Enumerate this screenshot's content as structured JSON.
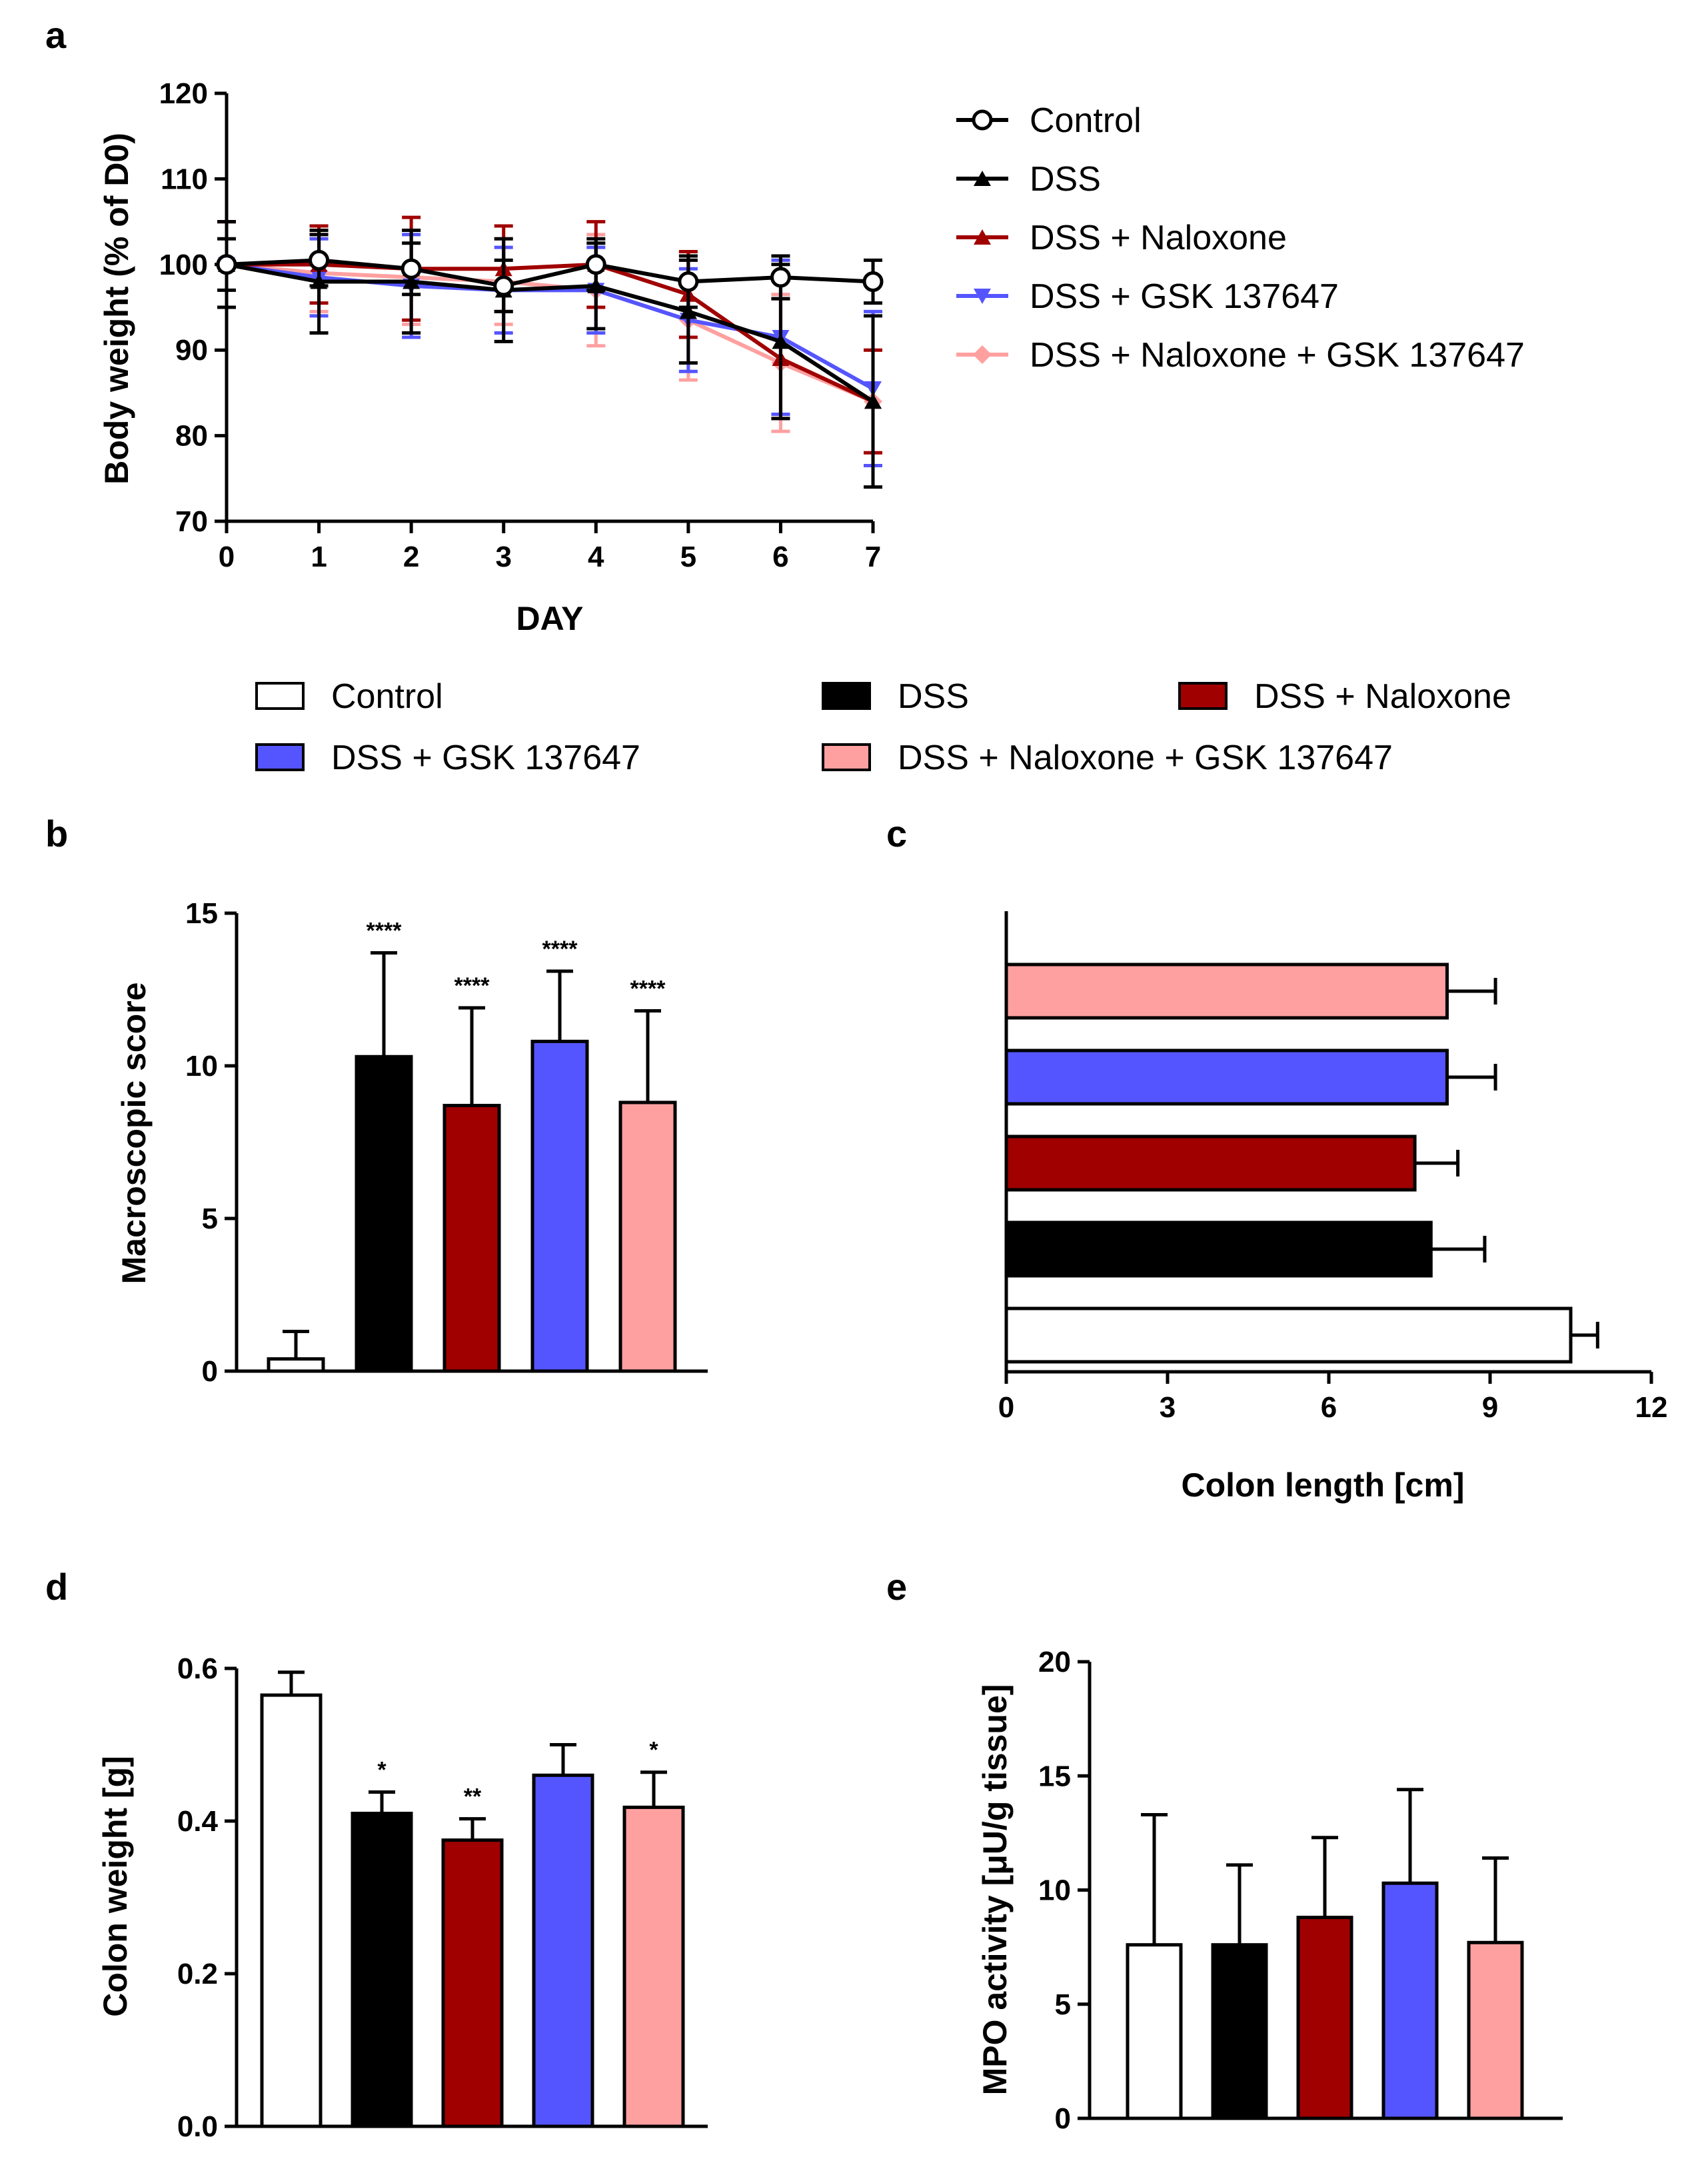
{
  "colors": {
    "Control": "#ffffff",
    "DSS": "#000000",
    "DSS + Naloxone": "#a00000",
    "DSS + GSK 137647": "#5555ff",
    "DSS + Naloxone + GSK 137647": "#ffa0a0"
  },
  "bar_legend": [
    "Control",
    "DSS",
    "DSS + Naloxone",
    "DSS + GSK 137647",
    "DSS + Naloxone + GSK 137647"
  ],
  "chart_data": [
    {
      "id": "a",
      "panel_label": "a",
      "type": "line",
      "xlabel": "DAY",
      "ylabel": "Body weight (% of D0)",
      "x": [
        0,
        1,
        2,
        3,
        4,
        5,
        6,
        7
      ],
      "xticks": [
        "0",
        "1",
        "2",
        "3",
        "4",
        "5",
        "6",
        "7"
      ],
      "ylim": [
        70,
        120
      ],
      "yticks": [
        "70",
        "80",
        "90",
        "100",
        "110",
        "120"
      ],
      "legend": [
        "Control",
        "DSS",
        "DSS + Naloxone",
        "DSS + GSK 137647",
        "DSS + Naloxone + GSK 137647"
      ],
      "series": [
        {
          "name": "Control",
          "values": [
            100,
            100.5,
            99.5,
            97.5,
            100,
            98,
            98.5,
            98
          ],
          "err": [
            3,
            3,
            3,
            3,
            3,
            3,
            2.5,
            2.5
          ]
        },
        {
          "name": "DSS",
          "values": [
            100,
            98,
            98,
            97,
            97.5,
            94.5,
            91,
            84
          ],
          "err": [
            5,
            6,
            6,
            6,
            5,
            6,
            9,
            10
          ]
        },
        {
          "name": "DSS + Naloxone",
          "values": [
            100,
            100,
            99.5,
            99.5,
            100,
            96.5,
            89,
            84
          ],
          "err": [
            5,
            4.5,
            6,
            5,
            5,
            5,
            7,
            6
          ]
        },
        {
          "name": "DSS + GSK 137647",
          "values": [
            100,
            98.5,
            97.5,
            97,
            97,
            93.5,
            91.5,
            85.5
          ],
          "err": [
            5,
            4.5,
            6,
            5,
            5,
            6,
            9,
            9
          ]
        },
        {
          "name": "DSS + Naloxone + GSK 137647",
          "values": [
            100,
            99,
            98.5,
            98,
            97,
            93.5,
            88.5,
            84
          ],
          "err": [
            5,
            4.5,
            5.5,
            5,
            6.5,
            7,
            8,
            6
          ]
        }
      ]
    },
    {
      "id": "b",
      "panel_label": "b",
      "type": "bar",
      "ylabel": "Macroscopic score",
      "categories": [
        "Control",
        "DSS",
        "DSS + Naloxone",
        "DSS + GSK 137647",
        "DSS + Naloxone + GSK 137647"
      ],
      "values": [
        0.4,
        10.3,
        8.7,
        10.8,
        8.8
      ],
      "err": [
        0.9,
        3.4,
        3.2,
        2.3,
        3.0
      ],
      "annotations": [
        "",
        "****",
        "****",
        "****",
        "****"
      ],
      "ylim": [
        0,
        15
      ],
      "yticks": [
        "0",
        "5",
        "10",
        "15"
      ]
    },
    {
      "id": "c",
      "panel_label": "c",
      "type": "bar",
      "orientation": "horizontal",
      "xlabel": "Colon length [cm]",
      "categories": [
        "Control",
        "DSS",
        "DSS + Naloxone",
        "DSS + GSK 137647",
        "DSS + Naloxone + GSK 137647"
      ],
      "values": [
        10.5,
        7.9,
        7.6,
        8.2,
        8.2
      ],
      "err": [
        0.5,
        1.0,
        0.8,
        0.9,
        0.9
      ],
      "xlim": [
        0,
        12
      ],
      "xticks": [
        "0",
        "3",
        "6",
        "9",
        "12"
      ]
    },
    {
      "id": "d",
      "panel_label": "d",
      "type": "bar",
      "ylabel": "Colon weight [g]",
      "categories": [
        "Control",
        "DSS",
        "DSS + Naloxone",
        "DSS + GSK 137647",
        "DSS + Naloxone + GSK 137647"
      ],
      "values": [
        0.565,
        0.41,
        0.375,
        0.46,
        0.418
      ],
      "err": [
        0.03,
        0.028,
        0.028,
        0.04,
        0.046
      ],
      "annotations": [
        "",
        "*",
        "**",
        "",
        "*"
      ],
      "ylim": [
        0,
        0.6
      ],
      "yticks": [
        "0.0",
        "0.2",
        "0.4",
        "0.6"
      ]
    },
    {
      "id": "e",
      "panel_label": "e",
      "type": "bar",
      "ylabel": "MPO activity [μU/g tissue]",
      "categories": [
        "Control",
        "DSS",
        "DSS + Naloxone",
        "DSS + GSK 137647",
        "DSS + Naloxone + GSK 137647"
      ],
      "values": [
        7.6,
        7.6,
        8.8,
        10.3,
        7.7
      ],
      "err": [
        5.7,
        3.5,
        3.5,
        4.1,
        3.7
      ],
      "ylim": [
        0,
        20
      ],
      "yticks": [
        "0",
        "5",
        "10",
        "15",
        "20"
      ]
    }
  ]
}
